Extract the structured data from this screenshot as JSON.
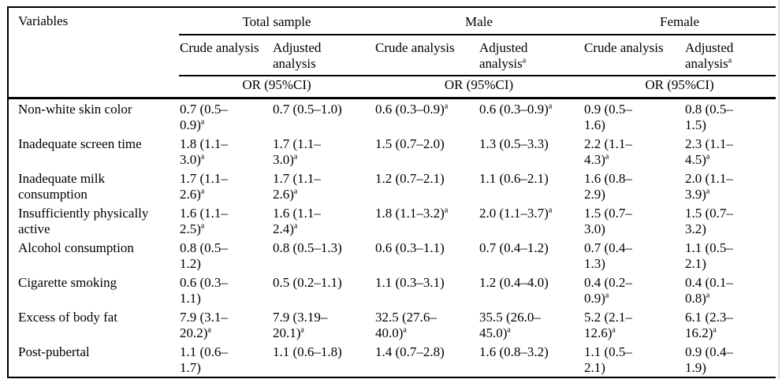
{
  "table": {
    "variables_header": "Variables",
    "groups": [
      {
        "label": "Total sample",
        "crude": "Crude analysis",
        "adjusted": "Adjusted analysis",
        "adjusted_sup": ""
      },
      {
        "label": "Male",
        "crude": "Crude analysis",
        "adjusted": "Adjusted analysis",
        "adjusted_sup": "a"
      },
      {
        "label": "Female",
        "crude": "Crude analysis",
        "adjusted": "Adjusted analysis",
        "adjusted_sup": "a"
      }
    ],
    "or_label": "OR (95%CI)",
    "footnote_marker": "a",
    "rows": [
      {
        "variable": "Non-white skin color",
        "cells": [
          {
            "t": "0.7 (0.5–0.9)",
            "s": true
          },
          {
            "t": "0.7 (0.5–1.0)",
            "s": false
          },
          {
            "t": "0.6 (0.3–0.9)",
            "s": true
          },
          {
            "t": "0.6 (0.3–0.9)",
            "s": true
          },
          {
            "t": "0.9 (0.5–1.6)",
            "s": false
          },
          {
            "t": "0.8 (0.5–1.5)",
            "s": false
          }
        ]
      },
      {
        "variable": "Inadequate screen time",
        "cells": [
          {
            "t": "1.8 (1.1–3.0)",
            "s": true
          },
          {
            "t": "1.7 (1.1–3.0)",
            "s": true
          },
          {
            "t": "1.5 (0.7–2.0)",
            "s": false
          },
          {
            "t": "1.3 (0.5–3.3)",
            "s": false
          },
          {
            "t": "2.2 (1.1–4.3)",
            "s": true
          },
          {
            "t": "2.3 (1.1–4.5)",
            "s": true
          }
        ]
      },
      {
        "variable": "Inadequate milk consumption",
        "cells": [
          {
            "t": "1.7 (1.1–2.6)",
            "s": true
          },
          {
            "t": "1.7 (1.1–2.6)",
            "s": true
          },
          {
            "t": "1.2 (0.7–2.1)",
            "s": false
          },
          {
            "t": "1.1 (0.6–2.1)",
            "s": false
          },
          {
            "t": "1.6 (0.8–2.9)",
            "s": false
          },
          {
            "t": "2.0 (1.1–3.9)",
            "s": true
          }
        ]
      },
      {
        "variable": "Insufficiently physically active",
        "cells": [
          {
            "t": "1.6 (1.1–2.5)",
            "s": true
          },
          {
            "t": "1.6 (1.1–2.4)",
            "s": true
          },
          {
            "t": "1.8 (1.1–3.2)",
            "s": true
          },
          {
            "t": "2.0 (1.1–3.7)",
            "s": true
          },
          {
            "t": "1.5 (0.7–3.0)",
            "s": false
          },
          {
            "t": "1.5 (0.7–3.2)",
            "s": false
          }
        ]
      },
      {
        "variable": "Alcohol consumption",
        "cells": [
          {
            "t": "0.8 (0.5–1.2)",
            "s": false
          },
          {
            "t": "0.8 (0.5–1.3)",
            "s": false
          },
          {
            "t": "0.6 (0.3–1.1)",
            "s": false
          },
          {
            "t": "0.7 (0.4–1.2)",
            "s": false
          },
          {
            "t": "0.7 (0.4–1.3)",
            "s": false
          },
          {
            "t": "1.1 (0.5–2.1)",
            "s": false
          }
        ]
      },
      {
        "variable": "Cigarette smoking",
        "cells": [
          {
            "t": "0.6 (0.3–1.1)",
            "s": false
          },
          {
            "t": "0.5 (0.2–1.1)",
            "s": false
          },
          {
            "t": "1.1 (0.3–3.1)",
            "s": false
          },
          {
            "t": "1.2 (0.4–4.0)",
            "s": false
          },
          {
            "t": "0.4 (0.2–0.9)",
            "s": true
          },
          {
            "t": "0.4 (0.1–0.8)",
            "s": true
          }
        ]
      },
      {
        "variable": "Excess of body fat",
        "cells": [
          {
            "t": "7.9 (3.1–20.2)",
            "s": true
          },
          {
            "t": "7.9 (3.19–20.1)",
            "s": true
          },
          {
            "t": "32.5 (27.6–40.0)",
            "s": true
          },
          {
            "t": "35.5 (26.0–45.0)",
            "s": true
          },
          {
            "t": "5.2 (2.1–12.6)",
            "s": true
          },
          {
            "t": "6.1 (2.3–16.2)",
            "s": true
          }
        ]
      },
      {
        "variable": "Post-pubertal",
        "cells": [
          {
            "t": "1.1 (0.6–1.7)",
            "s": false
          },
          {
            "t": "1.1 (0.6–1.8)",
            "s": false
          },
          {
            "t": "1.4 (0.7–2.8)",
            "s": false
          },
          {
            "t": "1.6 (0.8–3.2)",
            "s": false
          },
          {
            "t": "1.1 (0.5–2.1)",
            "s": false
          },
          {
            "t": "0.9 (0.4–1.9)",
            "s": false
          }
        ]
      }
    ]
  }
}
